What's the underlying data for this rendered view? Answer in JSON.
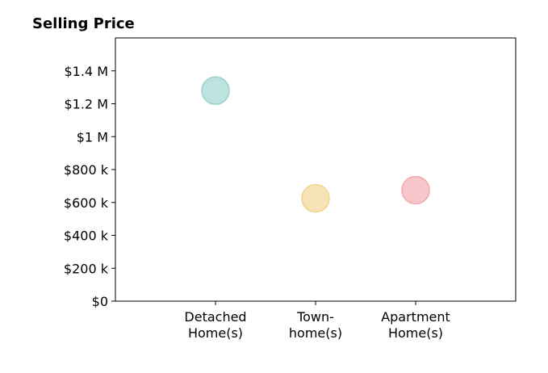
{
  "chart_data": {
    "type": "scatter",
    "title": "Selling Price",
    "xlabel": "",
    "ylabel": "",
    "ylim": [
      0,
      1600000
    ],
    "grid": false,
    "legend": "none",
    "y_ticks": [
      {
        "value": 0,
        "label": "$0"
      },
      {
        "value": 200000,
        "label": "$200 k"
      },
      {
        "value": 400000,
        "label": "$400 k"
      },
      {
        "value": 600000,
        "label": "$600 k"
      },
      {
        "value": 800000,
        "label": "$800 k"
      },
      {
        "value": 1000000,
        "label": "$1 M"
      },
      {
        "value": 1200000,
        "label": "$1.2 M"
      },
      {
        "value": 1400000,
        "label": "$1.4 M"
      }
    ],
    "categories": [
      {
        "line1": "Detached",
        "line2": "Home(s)"
      },
      {
        "line1": "Town-",
        "line2": "home(s)"
      },
      {
        "line1": "Apartment",
        "line2": "Home(s)"
      }
    ],
    "values": [
      1280000,
      625000,
      675000
    ],
    "colors": [
      "#8fd0c8",
      "#f2cf84",
      "#f2a0a8"
    ]
  }
}
